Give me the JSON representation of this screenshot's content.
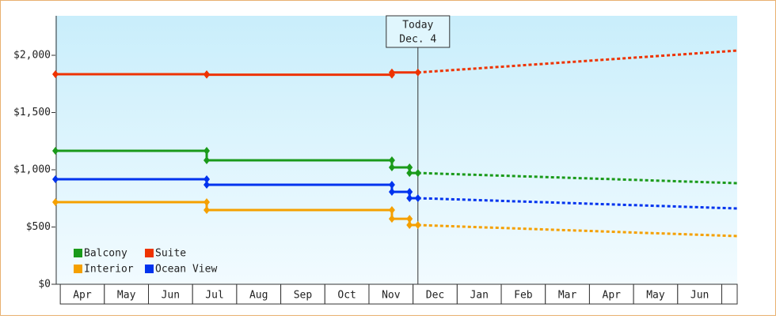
{
  "chart_data": {
    "type": "step-line",
    "categories": [
      "Apr",
      "May",
      "Jun",
      "Jul",
      "Aug",
      "Sep",
      "Oct",
      "Nov",
      "Dec",
      "Jan",
      "Feb",
      "Mar",
      "Apr",
      "May",
      "Jun",
      null
    ],
    "xlim": [
      -0.11,
      15.35
    ],
    "ylim": [
      0,
      2345
    ],
    "yticks": [
      {
        "value": 0,
        "label": "$0"
      },
      {
        "value": 500,
        "label": "$500"
      },
      {
        "value": 1000,
        "label": "$1,000"
      },
      {
        "value": 1500,
        "label": "$1,500"
      },
      {
        "value": 2000,
        "label": "$2,000"
      }
    ],
    "annotation": {
      "x": 8.11,
      "lines": [
        "Today",
        "Dec. 4"
      ]
    },
    "legend": "lower left",
    "series": [
      {
        "name": "Balcony",
        "color": "#1a9a1a",
        "x": [
          -0.11,
          3.32,
          3.32,
          7.52,
          7.52,
          7.92,
          7.92,
          8.11
        ],
        "values": [
          1166,
          1166,
          1083,
          1083,
          1021,
          1021,
          972,
          972
        ],
        "forecast_x": [
          8.11,
          15.35
        ],
        "forecast_values": [
          972,
          883
        ]
      },
      {
        "name": "Suite",
        "color": "#ee3300",
        "x": [
          -0.11,
          3.32,
          3.32,
          7.52,
          7.52,
          8.11
        ],
        "values": [
          1835,
          1835,
          1830,
          1830,
          1850,
          1850
        ],
        "forecast_x": [
          8.11,
          15.35
        ],
        "forecast_values": [
          1850,
          2041
        ]
      },
      {
        "name": "Interior",
        "color": "#f5a000",
        "x": [
          -0.11,
          3.32,
          3.32,
          7.52,
          7.52,
          7.92,
          7.92,
          8.11
        ],
        "values": [
          717,
          717,
          648,
          648,
          572,
          572,
          517,
          517
        ],
        "forecast_x": [
          8.11,
          15.35
        ],
        "forecast_values": [
          517,
          421
        ]
      },
      {
        "name": "Ocean View",
        "color": "#0033ee",
        "x": [
          -0.11,
          3.32,
          3.32,
          7.52,
          7.52,
          7.92,
          7.92,
          8.11
        ],
        "values": [
          917,
          917,
          869,
          869,
          807,
          807,
          752,
          752
        ],
        "forecast_x": [
          8.11,
          15.35
        ],
        "forecast_values": [
          752,
          662
        ]
      }
    ]
  }
}
